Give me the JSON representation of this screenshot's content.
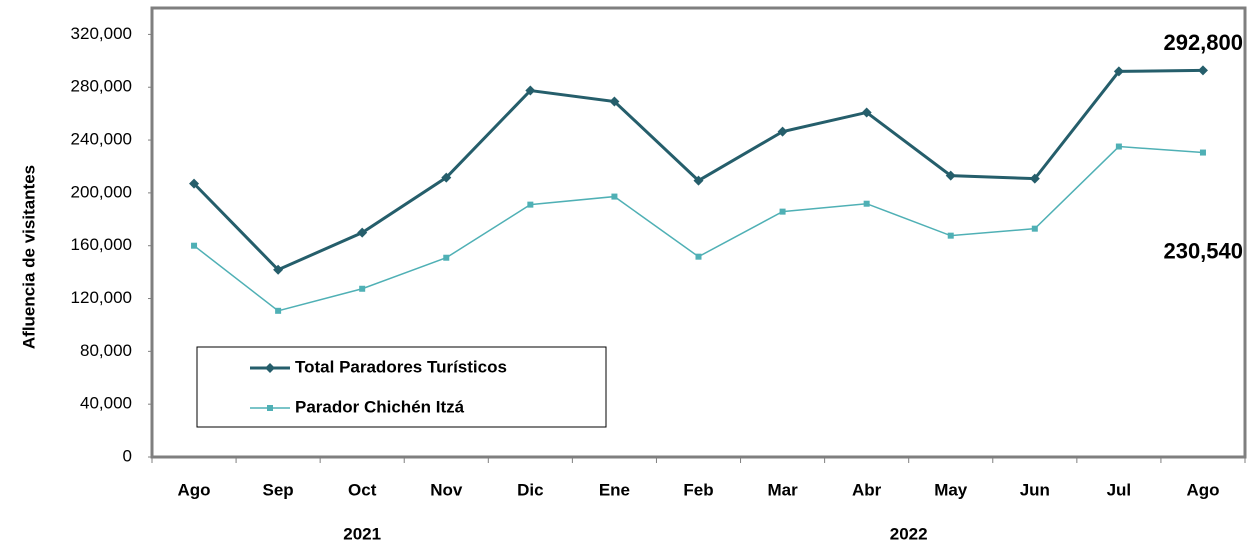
{
  "chart_data": {
    "type": "line",
    "ylabel": "Afluencia de visitantes",
    "categories": [
      "Ago",
      "Sep",
      "Oct",
      "Nov",
      "Dic",
      "Ene",
      "Feb",
      "Mar",
      "Abr",
      "May",
      "Jun",
      "Jul",
      "Ago"
    ],
    "category_groups": [
      {
        "label": "2021",
        "count": 5
      },
      {
        "label": "2022",
        "count": 8
      }
    ],
    "series": [
      {
        "name": "Total Paradores Turísticos",
        "color": "#255e6b",
        "marker": "diamond",
        "values": [
          207000,
          141800,
          169900,
          211600,
          277500,
          269200,
          209300,
          246400,
          260900,
          213100,
          210800,
          292000,
          292800
        ],
        "value_labels": [
          null,
          null,
          null,
          null,
          null,
          null,
          null,
          null,
          null,
          null,
          null,
          null,
          "292,800"
        ]
      },
      {
        "name": "Parador Chichén Itzá",
        "color": "#4fb0b5",
        "marker": "square",
        "values": [
          160000,
          110700,
          127400,
          150900,
          191100,
          197200,
          151700,
          185800,
          191800,
          167600,
          172900,
          235100,
          230540
        ],
        "value_labels": [
          null,
          null,
          null,
          null,
          null,
          null,
          null,
          null,
          null,
          null,
          null,
          null,
          "230,540"
        ]
      }
    ],
    "ylim": [
      0,
      340000
    ],
    "yticks": [
      0,
      {
        "value": 40000,
        "label": "40,000"
      },
      {
        "value": 80000,
        "label": "80,000"
      },
      {
        "value": 120000,
        "label": "120,000"
      },
      {
        "value": 160000,
        "label": "160,000"
      },
      {
        "value": 200000,
        "label": "200,000"
      },
      {
        "value": 240000,
        "label": "240,000"
      },
      {
        "value": 280000,
        "label": "280,000"
      },
      {
        "value": 320000,
        "label": "320,000"
      }
    ],
    "grid": false,
    "legend": "lower left"
  }
}
